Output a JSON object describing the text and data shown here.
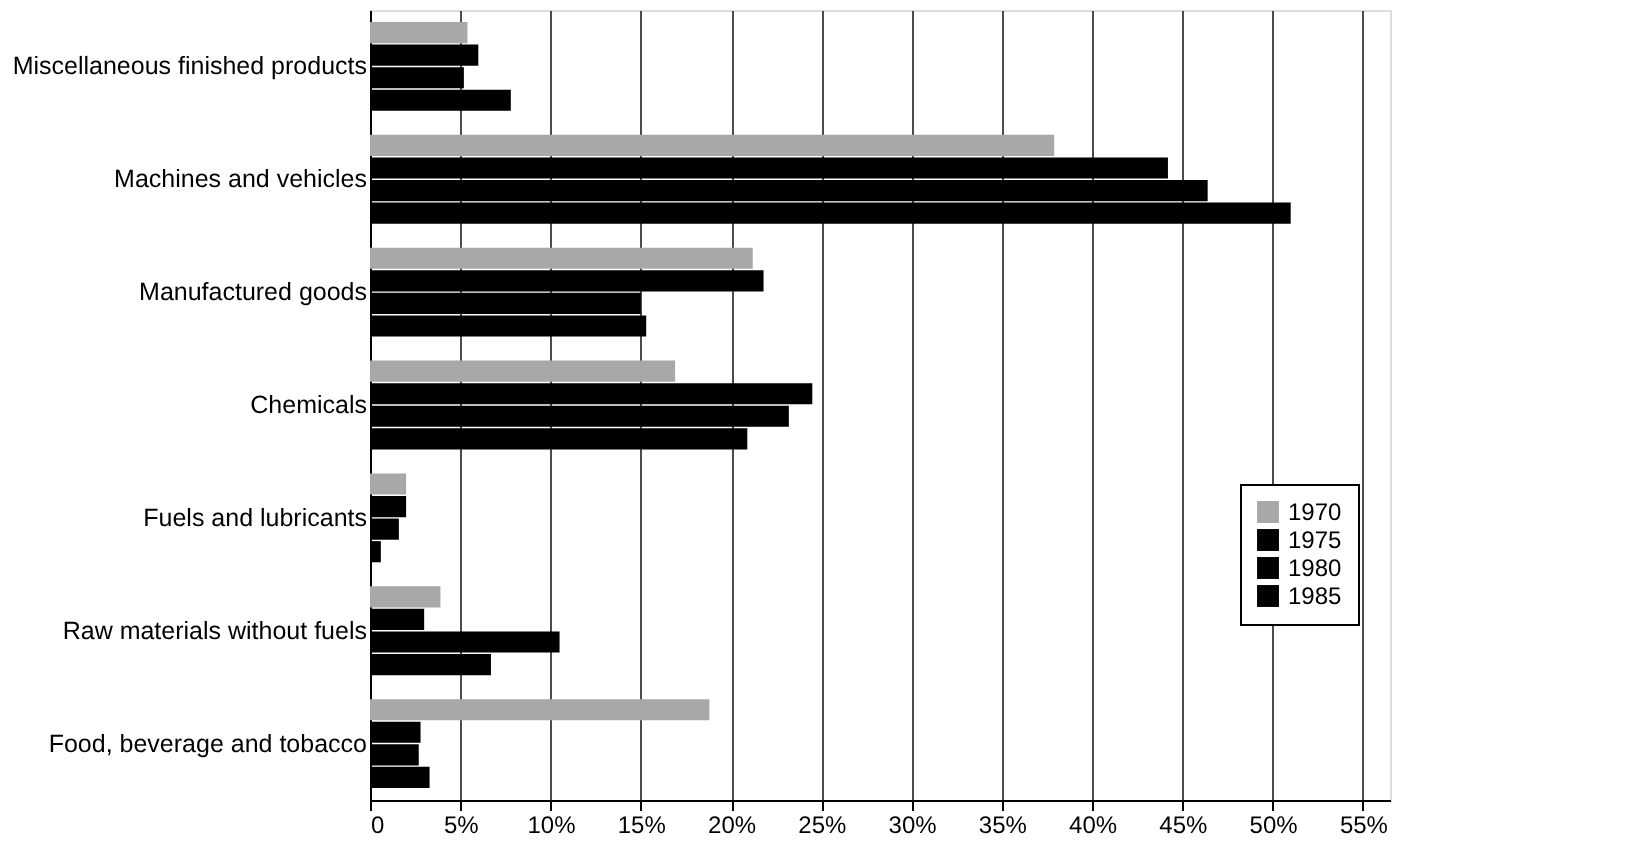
{
  "chart_data": {
    "type": "bar",
    "orientation": "horizontal",
    "categories": [
      "Miscellaneous finished products",
      "Machines and vehicles",
      "Manufactured goods",
      "Chemicals",
      "Fuels and lubricants",
      "Raw materials without fuels",
      "Food, beverage and tobacco"
    ],
    "series": [
      {
        "name": "1970",
        "color": "#a8a8a8",
        "values": [
          5.4,
          37.9,
          21.2,
          16.9,
          2.0,
          3.9,
          18.8
        ]
      },
      {
        "name": "1975",
        "color": "#000000",
        "values": [
          6.0,
          44.2,
          21.8,
          24.5,
          2.0,
          3.0,
          2.8
        ]
      },
      {
        "name": "1980",
        "color": "#000000",
        "values": [
          5.2,
          46.4,
          15.0,
          23.2,
          1.6,
          10.5,
          2.7
        ]
      },
      {
        "name": "1985",
        "color": "#000000",
        "values": [
          7.8,
          51.0,
          15.3,
          20.9,
          0.6,
          6.7,
          3.3
        ]
      }
    ],
    "xlim": [
      0,
      56.5
    ],
    "xticks": [
      0,
      {
        "value": 5,
        "label": "5%"
      },
      {
        "value": 10,
        "label": "10%"
      },
      {
        "value": 15,
        "label": "15%"
      },
      {
        "value": 20,
        "label": "20%"
      },
      {
        "value": 25,
        "label": "25%"
      },
      {
        "value": 30,
        "label": "30%"
      },
      {
        "value": 35,
        "label": "35%"
      },
      {
        "value": 40,
        "label": "40%"
      },
      {
        "value": 45,
        "label": "45%"
      },
      {
        "value": 50,
        "label": "50%"
      },
      {
        "value": 55,
        "label": "55%"
      }
    ],
    "grid": "x",
    "legend": "right"
  }
}
